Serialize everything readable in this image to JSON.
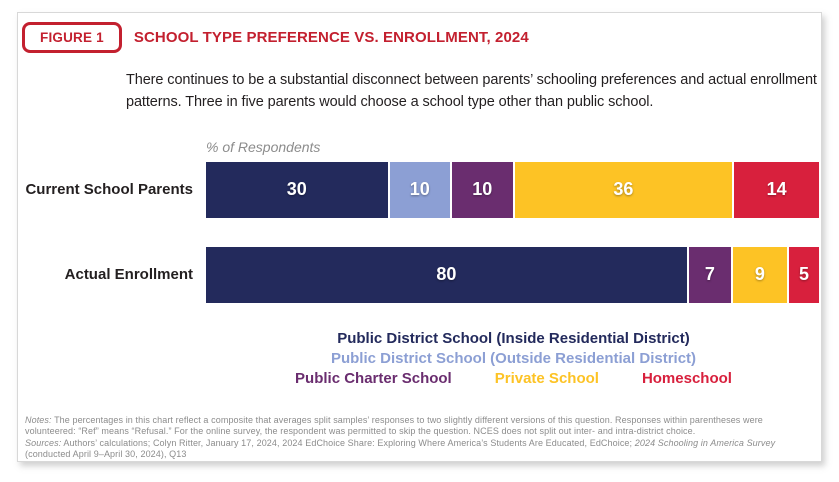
{
  "colors": {
    "accent_red": "#C3202F",
    "navy": "#232A5C",
    "light_blue": "#8C9FD4",
    "purple": "#6A2D6F",
    "yellow": "#FDC325",
    "red": "#D8203D",
    "text_dark": "#231F20",
    "muted_gray": "#8C8C8C",
    "card_border": "#D8D8D8"
  },
  "header": {
    "badge": "FIGURE 1",
    "title": "SCHOOL TYPE PREFERENCE VS. ENROLLMENT, 2024"
  },
  "subtitle": "There continues to be a substantial disconnect between parents’ schooling preferences and actual enrollment patterns. Three in five parents would choose a school type other than public school.",
  "chart_data": {
    "type": "bar",
    "stacked": true,
    "orientation": "horizontal",
    "title": "School Type Preference vs. Enrollment, 2024",
    "axis_label": "% of Respondents",
    "xlim": [
      0,
      100
    ],
    "grid": false,
    "categories": [
      "Current School Parents",
      "Actual Enrollment"
    ],
    "series": [
      {
        "name": "Public District School (Inside Residential District)",
        "color_key": "navy",
        "values": [
          30,
          80
        ]
      },
      {
        "name": "Public District School (Outside Residential District)",
        "color_key": "light_blue",
        "values": [
          10,
          0
        ]
      },
      {
        "name": "Public Charter School",
        "color_key": "purple",
        "values": [
          10,
          7
        ]
      },
      {
        "name": "Private School",
        "color_key": "yellow",
        "values": [
          36,
          9
        ]
      },
      {
        "name": "Homeschool",
        "color_key": "red",
        "values": [
          14,
          5
        ]
      }
    ],
    "legend_layout": [
      [
        0
      ],
      [
        1
      ],
      [
        2,
        3,
        4
      ]
    ],
    "legend_position": "bottom-center"
  },
  "notes": {
    "notes_label": "Notes:",
    "notes_body": " The percentages in this chart reflect a composite that averages split samples’ responses to two slightly different versions of this question. Responses within parentheses were volunteered: “Ref” means “Refusal.” For the online survey, the respondent was permitted to skip the question. NCES does not split out inter- and intra-district choice.",
    "sources_label": "Sources:",
    "sources_body_1": " Authors’ calculations; Colyn Ritter, January 17, 2024, 2024 EdChoice Share: Exploring Where America’s Students Are Educated, EdChoice; ",
    "sources_italic": "2024 Schooling in America Survey",
    "sources_body_2": " (conducted April 9–April 30, 2024), Q13"
  }
}
